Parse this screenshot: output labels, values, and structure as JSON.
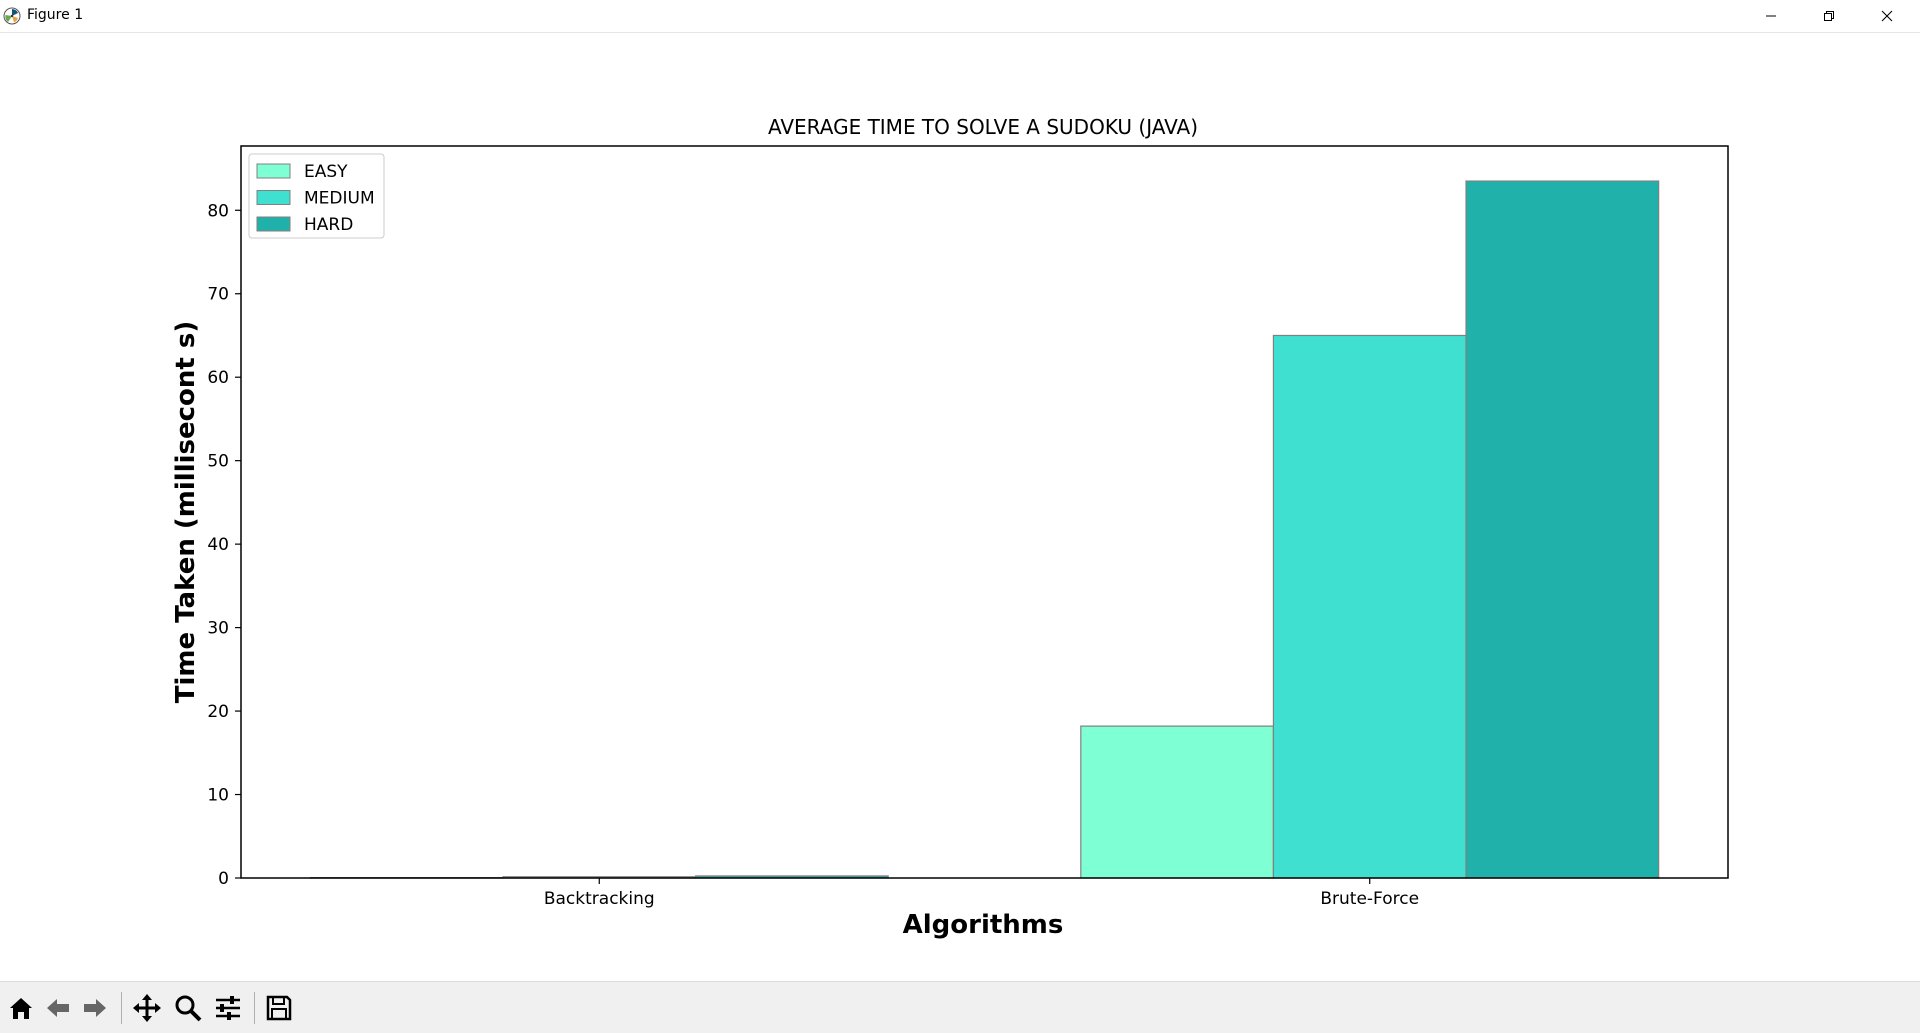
{
  "window": {
    "title": "Figure 1",
    "controls": [
      "minimize",
      "restore",
      "close"
    ]
  },
  "toolbar": {
    "buttons": [
      {
        "name": "home",
        "icon": "home-icon"
      },
      {
        "name": "back",
        "icon": "arrow-left-icon"
      },
      {
        "name": "forward",
        "icon": "arrow-right-icon"
      },
      {
        "name": "pan",
        "icon": "move-icon"
      },
      {
        "name": "zoom",
        "icon": "magnifier-icon"
      },
      {
        "name": "configure-subplots",
        "icon": "sliders-icon"
      },
      {
        "name": "save",
        "icon": "floppy-disk-icon"
      }
    ]
  },
  "chart_data": {
    "type": "bar",
    "title": "AVERAGE TIME TO SOLVE A SUDOKU (JAVA)",
    "xlabel": "Algorithms",
    "ylabel": "Time Taken (millisecont s)",
    "categories": [
      "Backtracking",
      "Brute-Force"
    ],
    "series": [
      {
        "name": "EASY",
        "values": [
          0.05,
          18.2
        ],
        "color": "#7fffd4"
      },
      {
        "name": "MEDIUM",
        "values": [
          0.15,
          65.0
        ],
        "color": "#40e0d0"
      },
      {
        "name": "HARD",
        "values": [
          0.25,
          83.5
        ],
        "color": "#20b2aa"
      }
    ],
    "ylim": [
      0,
      87.7
    ],
    "yticks": [
      0,
      10,
      20,
      30,
      40,
      50,
      60,
      70,
      80
    ],
    "bar_edge_color": "#808080",
    "legend_position": "upper left",
    "grid": false
  }
}
